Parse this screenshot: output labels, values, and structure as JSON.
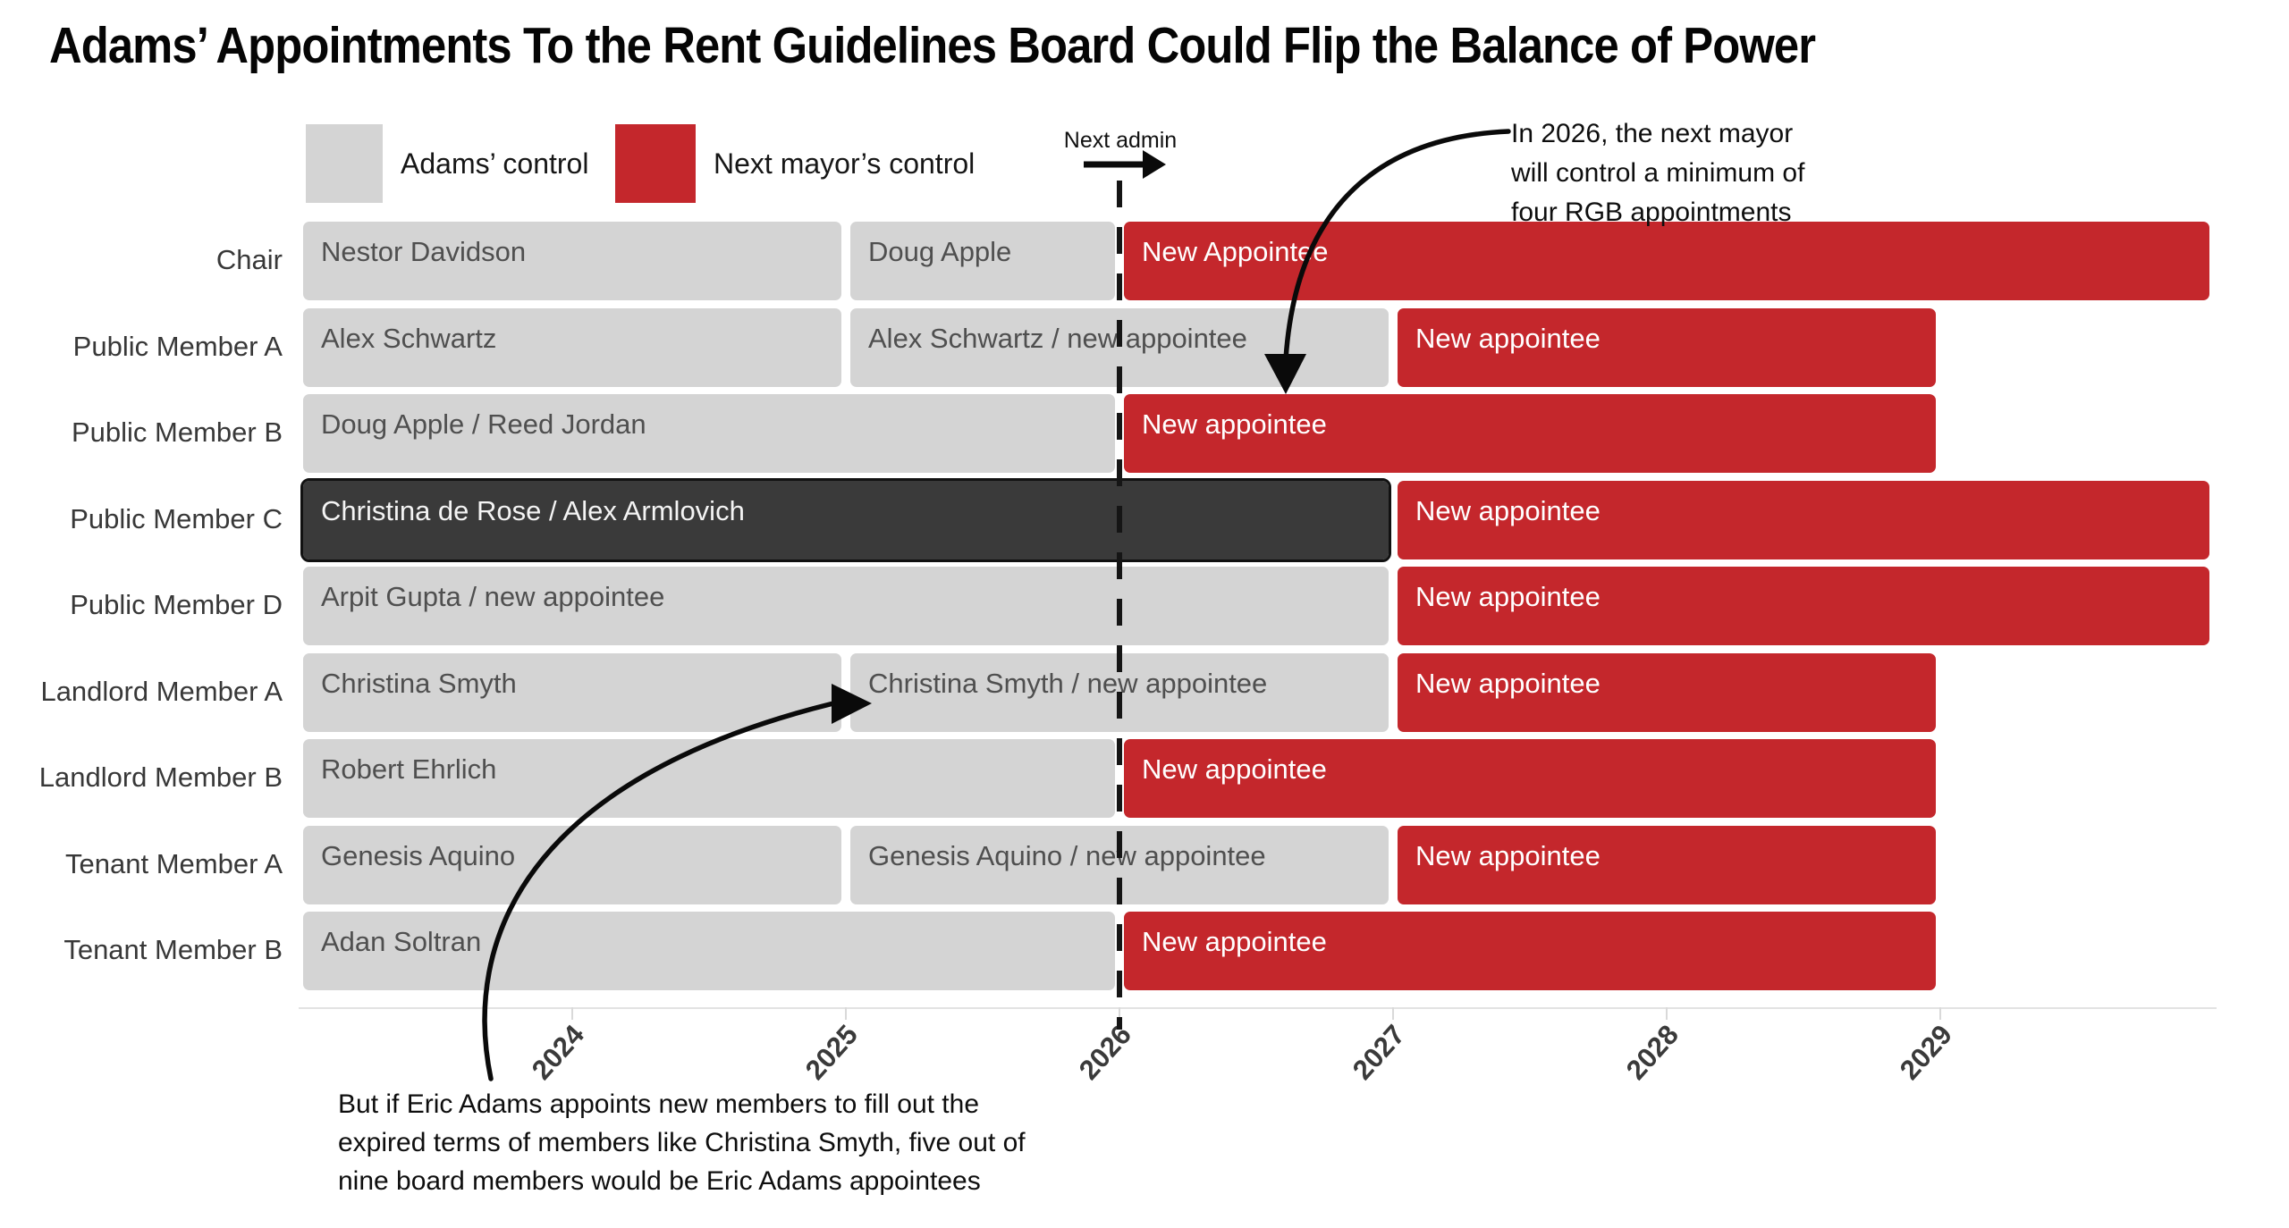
{
  "title": "Adams’ Appointments To the Rent Guidelines Board Could Flip the Balance of Power",
  "legend": {
    "items": [
      {
        "label": "Adams’ control",
        "color_key": "adams"
      },
      {
        "label": "Next mayor’s control",
        "color_key": "next"
      }
    ]
  },
  "next_admin": {
    "label": "Next admin"
  },
  "annotation_top": {
    "lines": [
      "In 2026, the next mayor",
      "will control a minimum of",
      "four RGB appointments"
    ]
  },
  "annotation_bottom": {
    "lines": [
      "But if Eric Adams appoints new members to fill out the",
      "expired terms of members like Christina Smyth, five out of",
      "nine board members would be Eric Adams appointees"
    ]
  },
  "colors": {
    "adams": "#d4d4d4",
    "next": "#c4272c",
    "highlight": "#3a3a3a",
    "highlight_border": "#111111",
    "adams_text": "#4f4f4f",
    "next_text": "#ffffff",
    "annotation": "#0e0e0e",
    "axis": "#e2e2e2"
  },
  "chart_data": {
    "type": "bar",
    "variant": "gantt-timeline",
    "title": "Adams’ Appointments To the Rent Guidelines Board Could Flip the Balance of Power",
    "x_range": [
      2023,
      2030
    ],
    "x_ticks": [
      2024,
      2025,
      2026,
      2027,
      2028,
      2029
    ],
    "divider_year": 2026,
    "legend_position": "top",
    "rows": [
      {
        "label": "Chair",
        "segments": [
          {
            "text": "Nestor Davidson",
            "start": 2023,
            "end": 2025,
            "control": "adams"
          },
          {
            "text": "Doug Apple",
            "start": 2025,
            "end": 2026,
            "control": "adams"
          },
          {
            "text": "New Appointee",
            "start": 2026,
            "end": 2030,
            "control": "next"
          }
        ]
      },
      {
        "label": "Public Member A",
        "segments": [
          {
            "text": "Alex Schwartz",
            "start": 2023,
            "end": 2025,
            "control": "adams"
          },
          {
            "text": "Alex Schwartz / new appointee",
            "start": 2025,
            "end": 2027,
            "control": "adams"
          },
          {
            "text": "New appointee",
            "start": 2027,
            "end": 2029,
            "control": "next"
          }
        ]
      },
      {
        "label": "Public Member B",
        "segments": [
          {
            "text": "Doug Apple / Reed Jordan",
            "start": 2023,
            "end": 2026,
            "control": "adams"
          },
          {
            "text": "New appointee",
            "start": 2026,
            "end": 2029,
            "control": "next"
          }
        ]
      },
      {
        "label": "Public Member C",
        "segments": [
          {
            "text": "Christina de Rose / Alex Armlovich",
            "start": 2023,
            "end": 2027,
            "control": "highlight"
          },
          {
            "text": "New appointee",
            "start": 2027,
            "end": 2030,
            "control": "next"
          }
        ]
      },
      {
        "label": "Public Member D",
        "segments": [
          {
            "text": "Arpit Gupta / new appointee",
            "start": 2023,
            "end": 2027,
            "control": "adams"
          },
          {
            "text": "New appointee",
            "start": 2027,
            "end": 2030,
            "control": "next"
          }
        ]
      },
      {
        "label": "Landlord Member A",
        "segments": [
          {
            "text": "Christina Smyth",
            "start": 2023,
            "end": 2025,
            "control": "adams"
          },
          {
            "text": "Christina Smyth / new appointee",
            "start": 2025,
            "end": 2027,
            "control": "adams"
          },
          {
            "text": "New appointee",
            "start": 2027,
            "end": 2029,
            "control": "next"
          }
        ]
      },
      {
        "label": "Landlord Member B",
        "segments": [
          {
            "text": "Robert Ehrlich",
            "start": 2023,
            "end": 2026,
            "control": "adams"
          },
          {
            "text": "New appointee",
            "start": 2026,
            "end": 2029,
            "control": "next"
          }
        ]
      },
      {
        "label": "Tenant Member A",
        "segments": [
          {
            "text": "Genesis Aquino",
            "start": 2023,
            "end": 2025,
            "control": "adams"
          },
          {
            "text": "Genesis Aquino / new appointee",
            "start": 2025,
            "end": 2027,
            "control": "adams"
          },
          {
            "text": "New appointee",
            "start": 2027,
            "end": 2029,
            "control": "next"
          }
        ]
      },
      {
        "label": "Tenant Member B",
        "segments": [
          {
            "text": "Adan Soltran",
            "start": 2023,
            "end": 2026,
            "control": "adams"
          },
          {
            "text": "New appointee",
            "start": 2026,
            "end": 2029,
            "control": "next"
          }
        ]
      }
    ]
  }
}
